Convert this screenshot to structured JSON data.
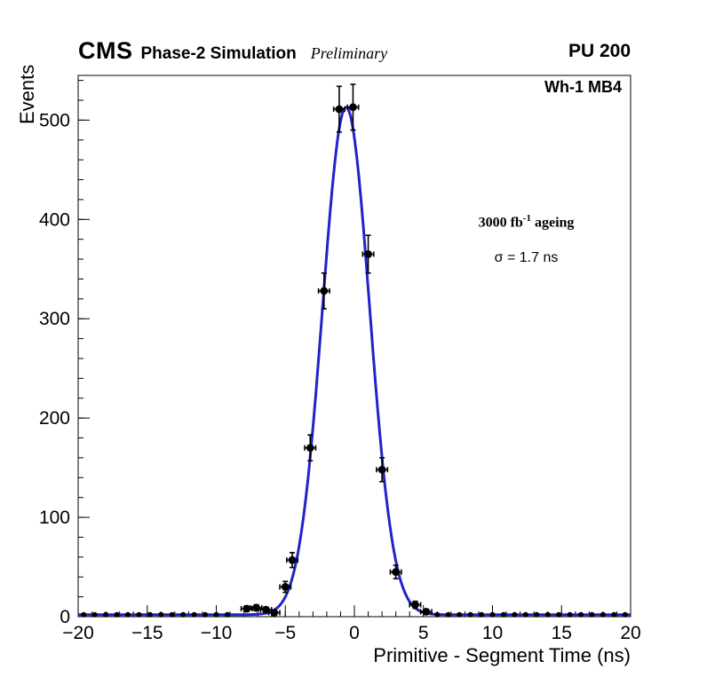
{
  "header": {
    "experiment": "CMS",
    "subtitle": "Phase-2 Simulation",
    "preliminary": "Preliminary",
    "pileup": "PU 200"
  },
  "plot_labels": {
    "chamber": "Wh-1 MB4",
    "ageing_prefix": "3000 fb",
    "ageing_superscript": "-1",
    "ageing_suffix": " ageing",
    "sigma_label": "σ = 1.7 ns"
  },
  "chart_data": {
    "type": "scatter",
    "title": "",
    "xlabel": "Primitive - Segment Time (ns)",
    "ylabel": "Events",
    "xlim": [
      -20,
      20
    ],
    "ylim": [
      0,
      545
    ],
    "grid": false,
    "x_minor_step": 1,
    "y_minor_step": 20,
    "x_major_ticks": [
      {
        "v": -20,
        "label": "−20"
      },
      {
        "v": -15,
        "label": "−15"
      },
      {
        "v": -10,
        "label": "−10"
      },
      {
        "v": -5,
        "label": "−5"
      },
      {
        "v": 0,
        "label": "0"
      },
      {
        "v": 5,
        "label": "5"
      },
      {
        "v": 10,
        "label": "10"
      },
      {
        "v": 15,
        "label": "15"
      },
      {
        "v": 20,
        "label": "20"
      }
    ],
    "y_major_ticks": [
      {
        "v": 0,
        "label": "0"
      },
      {
        "v": 100,
        "label": "100"
      },
      {
        "v": 200,
        "label": "200"
      },
      {
        "v": 300,
        "label": "300"
      },
      {
        "v": 400,
        "label": "400"
      },
      {
        "v": 500,
        "label": "500"
      }
    ],
    "fit_curve": {
      "shape": "gaussian",
      "amplitude": 511,
      "mean": -0.6,
      "sigma_ns": 1.7,
      "baseline": 2,
      "color": "#2222cc",
      "line_width": 3
    },
    "marker_color": "#000000",
    "points": [
      {
        "x": -7.8,
        "y": 8,
        "ex": 0.4,
        "ey": 2.8
      },
      {
        "x": -7.1,
        "y": 9,
        "ex": 0.4,
        "ey": 3.0
      },
      {
        "x": -6.4,
        "y": 7,
        "ex": 0.4,
        "ey": 2.6
      },
      {
        "x": -5.8,
        "y": 4,
        "ex": 0.4,
        "ey": 2.0
      },
      {
        "x": -5.0,
        "y": 30,
        "ex": 0.4,
        "ey": 5.5
      },
      {
        "x": -4.5,
        "y": 57,
        "ex": 0.4,
        "ey": 7.5
      },
      {
        "x": -3.2,
        "y": 170,
        "ex": 0.4,
        "ey": 13
      },
      {
        "x": -2.2,
        "y": 328,
        "ex": 0.4,
        "ey": 18
      },
      {
        "x": -1.1,
        "y": 511,
        "ex": 0.4,
        "ey": 23
      },
      {
        "x": -0.1,
        "y": 513,
        "ex": 0.4,
        "ey": 23
      },
      {
        "x": 1.0,
        "y": 365,
        "ex": 0.4,
        "ey": 19
      },
      {
        "x": 2.0,
        "y": 148,
        "ex": 0.4,
        "ey": 12
      },
      {
        "x": 3.0,
        "y": 45,
        "ex": 0.4,
        "ey": 6.7
      },
      {
        "x": 4.4,
        "y": 12,
        "ex": 0.4,
        "ey": 3.5
      },
      {
        "x": 5.2,
        "y": 5,
        "ex": 0.4,
        "ey": 2.2
      }
    ],
    "baseline_points": {
      "ranges": [
        [
          -19.6,
          -8.8
        ],
        [
          6.0,
          19.6
        ]
      ],
      "step": 0.8,
      "y": 2
    }
  }
}
